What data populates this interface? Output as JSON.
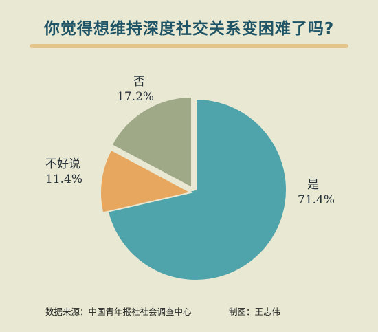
{
  "title": "你觉得想维持深度社交关系变困难了吗?",
  "chart_data": {
    "type": "pie",
    "slices": [
      {
        "label": "是",
        "value": 71.4,
        "display": "71.4%",
        "color": "#4fa4ac"
      },
      {
        "label": "不好说",
        "value": 11.4,
        "display": "11.4%",
        "color": "#e8a75f"
      },
      {
        "label": "否",
        "value": 17.2,
        "display": "17.2%",
        "color": "#9fa987"
      }
    ]
  },
  "footer": {
    "source": "数据来源：中国青年报社社会调查中心",
    "author": "制图：王志伟"
  }
}
